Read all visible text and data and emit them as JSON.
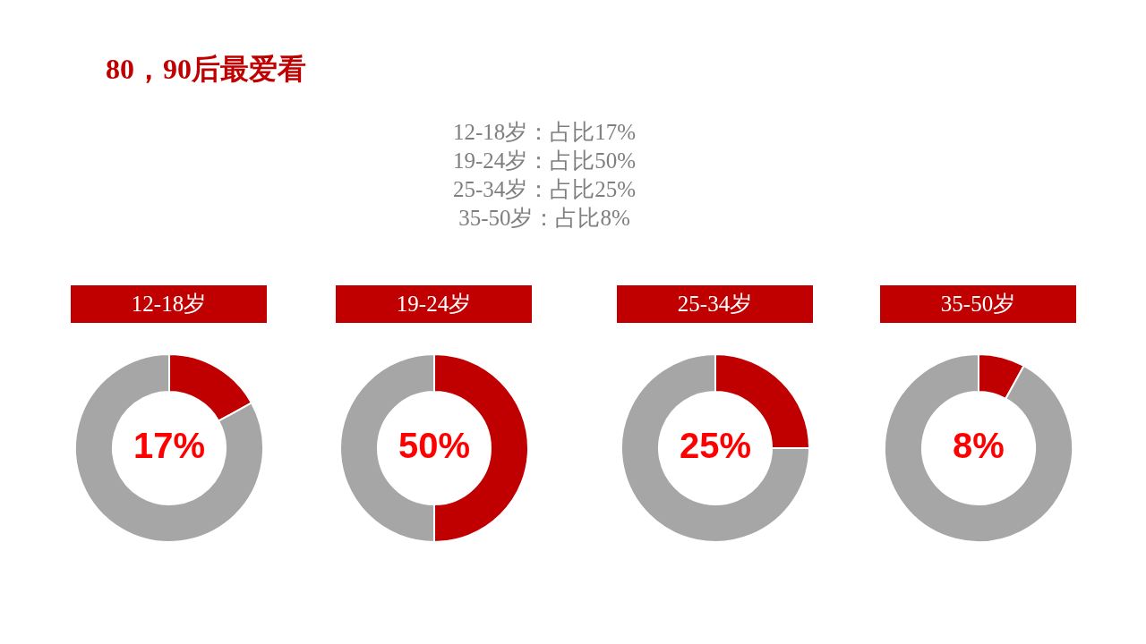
{
  "chart_data": [
    {
      "type": "other",
      "title": "80，90后最爱看",
      "annotations": [
        "12-18岁：占比17%",
        "19-24岁：占比50%",
        "25-34岁：占比25%",
        "35-50岁：占比8%"
      ]
    },
    {
      "type": "donut",
      "title": "12-18岁",
      "categories": [
        null,
        null
      ],
      "values": [
        17,
        83
      ],
      "colors": [
        "#c00000",
        "#a6a6a6"
      ],
      "value_labels": [
        "17%",
        null
      ]
    },
    {
      "type": "donut",
      "title": "19-24岁",
      "categories": [
        null,
        null
      ],
      "values": [
        50,
        50
      ],
      "colors": [
        "#c00000",
        "#a6a6a6"
      ],
      "value_labels": [
        "50%",
        null
      ]
    },
    {
      "type": "donut",
      "title": "25-34岁",
      "categories": [
        null,
        null
      ],
      "values": [
        25,
        75
      ],
      "colors": [
        "#c00000",
        "#a6a6a6"
      ],
      "value_labels": [
        "25%",
        null
      ]
    },
    {
      "type": "donut",
      "title": "35-50岁",
      "categories": [
        null,
        null
      ],
      "values": [
        8,
        92
      ],
      "colors": [
        "#c00000",
        "#a6a6a6"
      ],
      "value_labels": [
        "8%",
        null
      ]
    }
  ]
}
